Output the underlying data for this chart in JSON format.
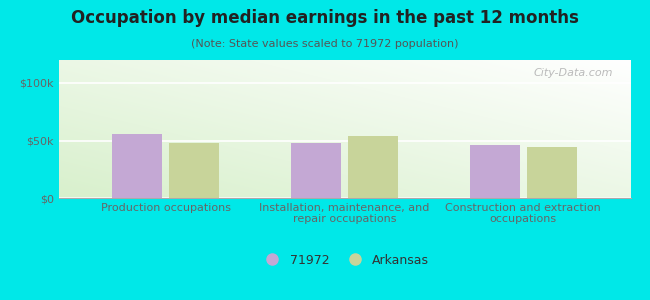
{
  "title": "Occupation by median earnings in the past 12 months",
  "subtitle": "(Note: State values scaled to 71972 population)",
  "categories": [
    "Production occupations",
    "Installation, maintenance, and\nrepair occupations",
    "Construction and extraction\noccupations"
  ],
  "values_71972": [
    56000,
    48000,
    46000
  ],
  "values_arkansas": [
    48000,
    54000,
    44000
  ],
  "bar_color_71972": "#c4a8d4",
  "bar_color_arkansas": "#c8d49a",
  "background_outer": "#00e8e8",
  "background_chart_top": "#ffffff",
  "background_chart_bottom": "#d8f0cc",
  "ylim": [
    0,
    120000
  ],
  "yticks": [
    0,
    50000,
    100000
  ],
  "ytick_labels": [
    "$0",
    "$50k",
    "$100k"
  ],
  "legend_label_1": "71972",
  "legend_label_2": "Arkansas",
  "watermark": "City-Data.com",
  "bar_width": 0.28,
  "title_fontsize": 12,
  "subtitle_fontsize": 8,
  "tick_label_fontsize": 8,
  "legend_fontsize": 9,
  "title_color": "#222222",
  "subtitle_color": "#555555",
  "tick_color": "#666666"
}
